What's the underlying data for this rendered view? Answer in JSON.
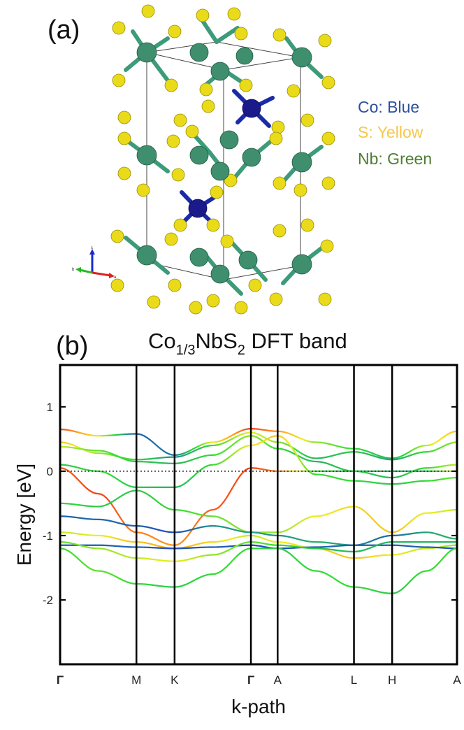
{
  "panel_a": {
    "label": "(a)",
    "legend": [
      {
        "text": "Co: Blue",
        "color": "#2e4f9b"
      },
      {
        "text": "S: Yellow",
        "color": "#f5c84a"
      },
      {
        "text": "Nb: Green",
        "color": "#4f7d33"
      }
    ],
    "axes_triad": {
      "c": "c",
      "b": "b",
      "a": "a"
    }
  },
  "panel_b": {
    "label": "(b)",
    "title_main": "Co",
    "title_sub": "1/3",
    "title_mid": "NbS",
    "title_sub2": "2",
    "title_end": " DFT band"
  },
  "chart_data": {
    "type": "line",
    "xlabel": "k-path",
    "ylabel": "Energy [eV]",
    "ylim": [
      -3.0,
      1.65
    ],
    "yticks": [
      1,
      0,
      -1,
      -2
    ],
    "ytick_labels": [
      "1",
      "0",
      "-1",
      "-2"
    ],
    "fermi_level": 0,
    "grid": false,
    "kpoints": [
      {
        "label": "Γ",
        "x": 0.0,
        "bold": true
      },
      {
        "label": "M",
        "x": 1.0,
        "bold": false
      },
      {
        "label": "K",
        "x": 1.5,
        "bold": false
      },
      {
        "label": "Γ",
        "x": 2.5,
        "bold": true
      },
      {
        "label": "A",
        "x": 2.85,
        "bold": false
      },
      {
        "label": "L",
        "x": 3.85,
        "bold": false
      },
      {
        "label": "H",
        "x": 4.35,
        "bold": false
      },
      {
        "label": "A",
        "x": 5.2,
        "bold": false
      }
    ],
    "color_scale": [
      "#2233cc",
      "#1f8f8f",
      "#33dd33",
      "#eeee22",
      "#ff9922",
      "#ee2211"
    ],
    "series": [
      {
        "x": [
          0,
          0.5,
          1.0,
          1.5,
          2.0,
          2.5,
          2.85,
          3.35,
          3.85,
          4.35,
          4.8,
          5.2
        ],
        "y": [
          0.65,
          0.55,
          0.58,
          0.25,
          0.45,
          0.66,
          0.62,
          0.45,
          0.35,
          0.2,
          0.4,
          0.62
        ],
        "w": [
          0.95,
          0.6,
          0.1,
          0.15,
          0.6,
          0.95,
          0.8,
          0.5,
          0.4,
          0.3,
          0.55,
          0.7
        ]
      },
      {
        "x": [
          0,
          0.5,
          1.0,
          1.5,
          2.0,
          2.5,
          2.85,
          3.35,
          3.85,
          4.35,
          4.8,
          5.2
        ],
        "y": [
          0.45,
          0.28,
          0.18,
          0.22,
          0.4,
          0.6,
          0.45,
          0.2,
          0.3,
          0.18,
          0.3,
          0.45
        ],
        "w": [
          0.7,
          0.5,
          0.4,
          0.2,
          0.4,
          0.6,
          0.5,
          0.3,
          0.35,
          0.25,
          0.4,
          0.5
        ]
      },
      {
        "x": [
          0,
          0.5,
          1.0,
          1.5,
          2.0,
          2.5,
          2.85,
          3.35,
          3.85,
          4.35,
          4.8,
          5.2
        ],
        "y": [
          0.38,
          0.32,
          0.15,
          0.12,
          0.25,
          0.55,
          0.35,
          0.15,
          0.0,
          -0.1,
          0.05,
          0.1
        ],
        "w": [
          0.55,
          0.45,
          0.35,
          0.3,
          0.4,
          0.5,
          0.4,
          0.3,
          0.35,
          0.3,
          0.4,
          0.55
        ]
      },
      {
        "x": [
          0,
          0.5,
          1.0,
          1.5,
          2.0,
          2.5,
          2.85,
          3.35,
          3.85,
          4.35,
          4.8,
          5.2
        ],
        "y": [
          0.05,
          -0.35,
          -0.95,
          -1.15,
          -0.6,
          0.05,
          0.0,
          0.0,
          0.0,
          0.0,
          0.0,
          0.0
        ],
        "w": [
          0.9,
          0.95,
          0.85,
          0.8,
          0.9,
          0.95,
          0.85,
          0.4,
          0.35,
          0.3,
          0.35,
          0.6
        ]
      },
      {
        "x": [
          0,
          0.5,
          1.0,
          1.5,
          2.0,
          2.5,
          2.85,
          3.35,
          3.85,
          4.35,
          4.8,
          5.2
        ],
        "y": [
          0.1,
          0.0,
          -0.25,
          -0.25,
          0.1,
          0.4,
          0.55,
          -0.05,
          -0.15,
          -0.2,
          -0.15,
          -0.1
        ],
        "w": [
          0.35,
          0.4,
          0.35,
          0.3,
          0.4,
          0.6,
          0.7,
          0.4,
          0.4,
          0.35,
          0.4,
          0.45
        ]
      },
      {
        "x": [
          0,
          0.5,
          1.0,
          1.5,
          2.0,
          2.5,
          2.85,
          3.35,
          3.85,
          4.35,
          4.8,
          5.2
        ],
        "y": [
          -0.5,
          -0.55,
          -0.3,
          -0.6,
          -0.7,
          -0.95,
          -0.95,
          -0.7,
          -0.55,
          -0.95,
          -0.65,
          -0.6
        ],
        "w": [
          0.4,
          0.35,
          0.35,
          0.4,
          0.45,
          0.5,
          0.5,
          0.6,
          0.65,
          0.7,
          0.6,
          0.55
        ]
      },
      {
        "x": [
          0,
          0.5,
          1.0,
          1.5,
          2.0,
          2.5,
          2.85,
          3.35,
          3.85,
          4.35,
          4.8,
          5.2
        ],
        "y": [
          -0.7,
          -0.75,
          -0.85,
          -0.95,
          -0.85,
          -0.95,
          -1.0,
          -1.1,
          -1.15,
          -1.0,
          -0.95,
          -1.05
        ],
        "w": [
          0.1,
          0.12,
          0.1,
          0.05,
          0.2,
          0.25,
          0.2,
          0.3,
          0.2,
          0.1,
          0.25,
          0.3
        ]
      },
      {
        "x": [
          0,
          0.5,
          1.0,
          1.5,
          2.0,
          2.5,
          2.85,
          3.35,
          3.85,
          4.35,
          4.8,
          5.2
        ],
        "y": [
          -0.95,
          -1.0,
          -1.1,
          -1.2,
          -1.1,
          -1.0,
          -1.1,
          -1.2,
          -1.35,
          -1.3,
          -1.2,
          -1.15
        ],
        "w": [
          0.55,
          0.6,
          0.7,
          0.75,
          0.65,
          0.55,
          0.6,
          0.65,
          0.7,
          0.6,
          0.55,
          0.5
        ]
      },
      {
        "x": [
          0,
          0.5,
          1.0,
          1.5,
          2.0,
          2.5,
          2.85,
          3.35,
          3.85,
          4.35,
          4.8,
          5.2
        ],
        "y": [
          -1.15,
          -1.15,
          -1.18,
          -1.2,
          -1.18,
          -1.15,
          -1.2,
          -1.18,
          -1.15,
          -1.15,
          -1.18,
          -1.2
        ],
        "w": [
          0.1,
          0.1,
          0.1,
          0.05,
          0.1,
          0.05,
          0.05,
          0.1,
          0.1,
          0.1,
          0.1,
          0.05
        ]
      },
      {
        "x": [
          0,
          0.5,
          1.0,
          1.5,
          2.0,
          2.5,
          2.85,
          3.35,
          3.85,
          4.35,
          4.8,
          5.2
        ],
        "y": [
          -1.1,
          -1.2,
          -1.35,
          -1.4,
          -1.3,
          -1.1,
          -1.15,
          -1.2,
          -1.25,
          -1.1,
          -1.1,
          -1.1
        ],
        "w": [
          0.45,
          0.5,
          0.55,
          0.6,
          0.5,
          0.45,
          0.4,
          0.35,
          0.3,
          0.3,
          0.3,
          0.3
        ]
      },
      {
        "x": [
          0,
          0.5,
          1.0,
          1.5,
          2.0,
          2.5,
          2.85,
          3.35,
          3.85,
          4.35,
          4.8,
          5.2
        ],
        "y": [
          -1.2,
          -1.55,
          -1.75,
          -1.8,
          -1.6,
          -1.2,
          -1.2,
          -1.55,
          -1.8,
          -1.9,
          -1.55,
          -1.2
        ],
        "w": [
          0.4,
          0.45,
          0.4,
          0.35,
          0.4,
          0.4,
          0.35,
          0.4,
          0.4,
          0.35,
          0.4,
          0.4
        ]
      }
    ]
  }
}
